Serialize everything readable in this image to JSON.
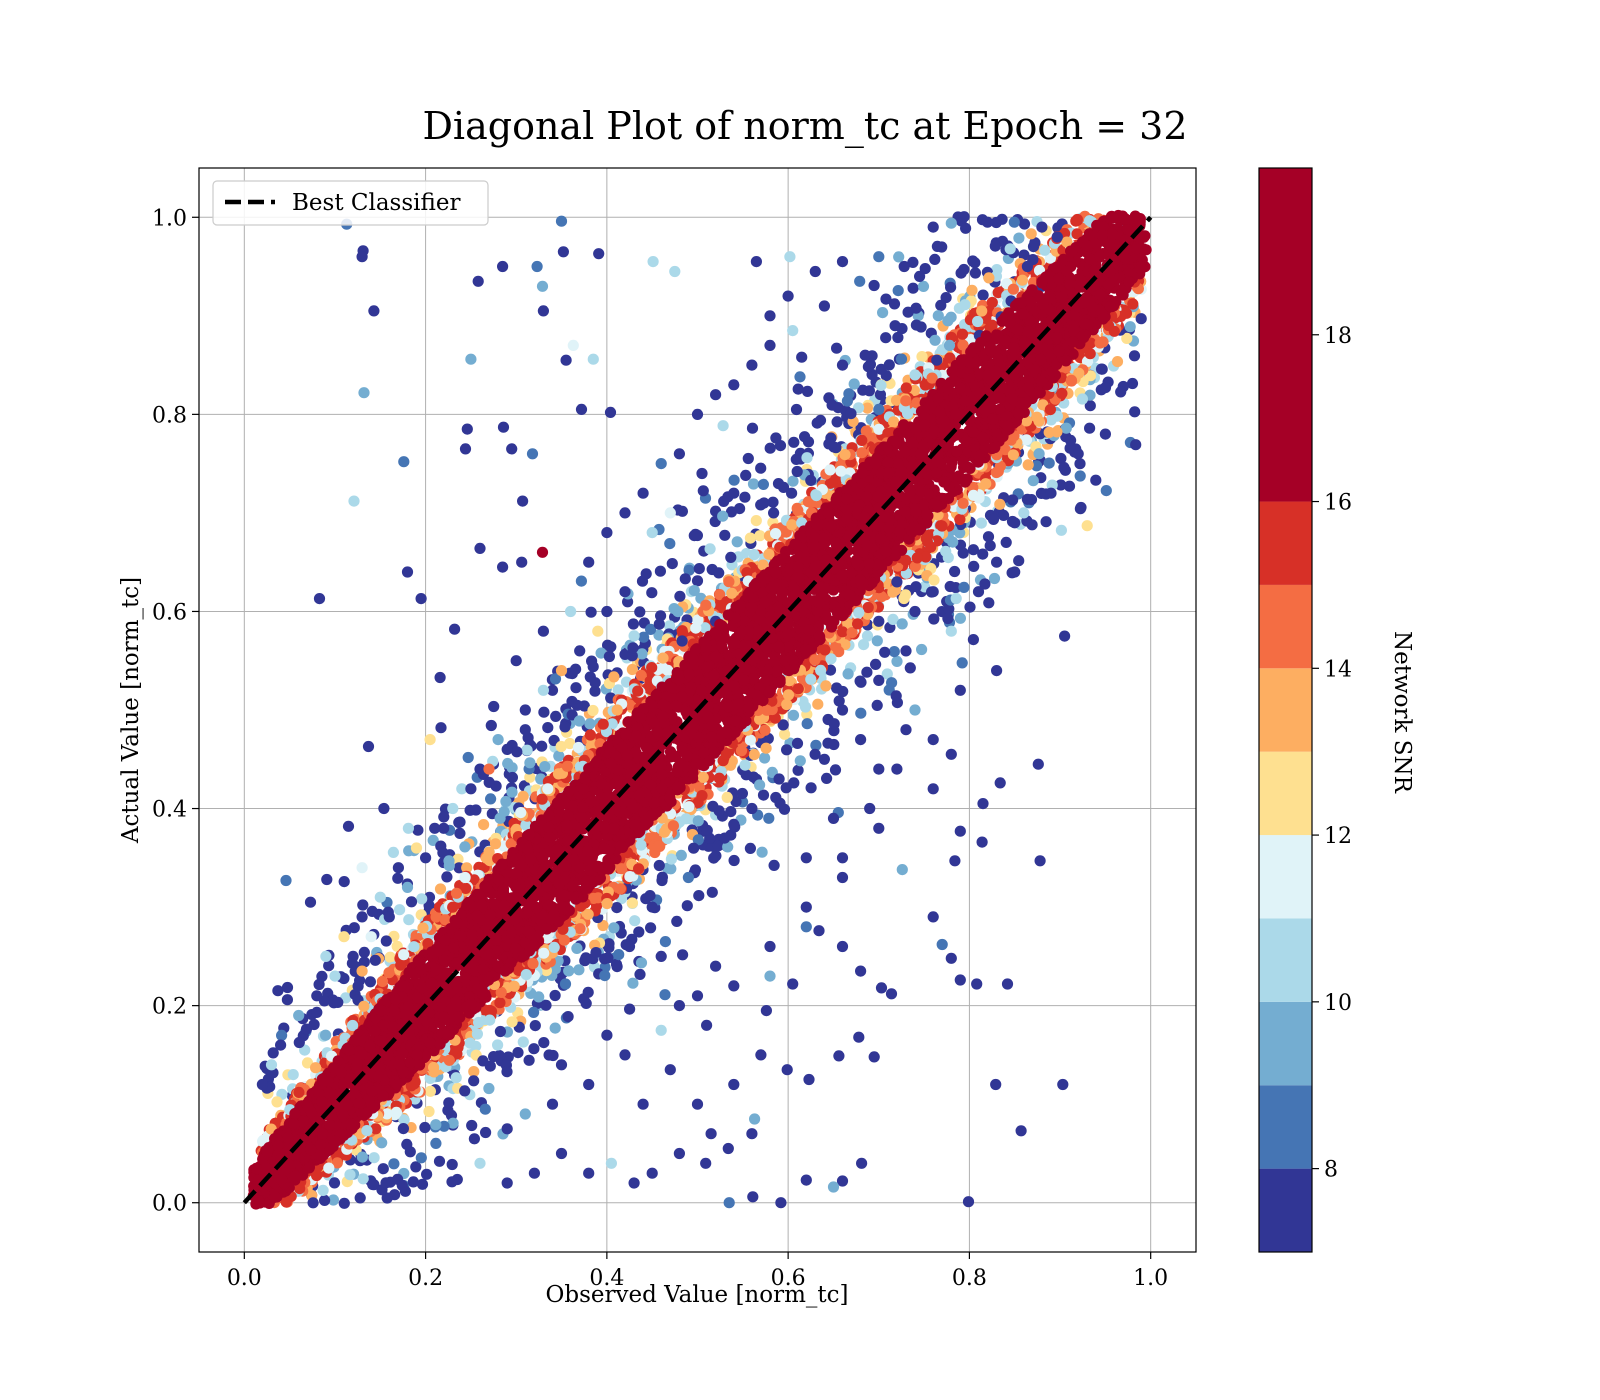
{
  "chart_data": {
    "type": "scatter",
    "title": "Diagonal Plot of norm_tc at Epoch = 32",
    "xlabel": "Observed Value [norm_tc]",
    "ylabel": "Actual Value [norm_tc]",
    "xlim": [
      -0.05,
      1.05
    ],
    "ylim": [
      -0.05,
      1.05
    ],
    "x_ticks": [
      0.0,
      0.2,
      0.4,
      0.6,
      0.8,
      1.0
    ],
    "y_ticks": [
      0.0,
      0.2,
      0.4,
      0.6,
      0.8,
      1.0
    ],
    "x_tick_labels": [
      "0.0",
      "0.2",
      "0.4",
      "0.6",
      "0.8",
      "1.0"
    ],
    "y_tick_labels": [
      "0.0",
      "0.2",
      "0.4",
      "0.6",
      "0.8",
      "1.0"
    ],
    "grid": true,
    "reference_line": {
      "name": "Best Classifier",
      "style": "dashed",
      "color": "#000000",
      "points": [
        [
          0.0,
          0.0
        ],
        [
          1.0,
          1.0
        ]
      ]
    },
    "legend": {
      "placement": "top-left",
      "entries": [
        "Best Classifier"
      ]
    },
    "colorbar": {
      "label": "Network SNR",
      "range": [
        7,
        20
      ],
      "ticks": [
        8,
        10,
        12,
        14,
        16,
        18
      ],
      "tick_labels": [
        "8",
        "10",
        "12",
        "14",
        "16",
        "18"
      ],
      "bins": [
        {
          "from": 7,
          "to": 8,
          "color": "#313695"
        },
        {
          "from": 8,
          "to": 9,
          "color": "#4575b4"
        },
        {
          "from": 9,
          "to": 10,
          "color": "#74add1"
        },
        {
          "from": 10,
          "to": 11,
          "color": "#abd9e9"
        },
        {
          "from": 11,
          "to": 12,
          "color": "#e0f3f8"
        },
        {
          "from": 12,
          "to": 13,
          "color": "#fee090"
        },
        {
          "from": 13,
          "to": 14,
          "color": "#fdae61"
        },
        {
          "from": 14,
          "to": 15,
          "color": "#f46d43"
        },
        {
          "from": 15,
          "to": 16,
          "color": "#d73027"
        },
        {
          "from": 16,
          "to": 20,
          "color": "#a50026"
        }
      ]
    },
    "point_color_by": "Network SNR",
    "band": {
      "description_values": "core points lie near y = x for SNR >= 16",
      "core_halfwidth_by_x": [
        [
          0.0,
          0.03
        ],
        [
          0.2,
          0.06
        ],
        [
          0.4,
          0.07
        ],
        [
          0.6,
          0.07
        ],
        [
          0.8,
          0.07
        ],
        [
          1.0,
          0.05
        ]
      ]
    },
    "points": [
      [
        0.113,
        0.993,
        8.0
      ],
      [
        0.131,
        0.966,
        7.6
      ],
      [
        0.13,
        0.96,
        7.4
      ],
      [
        0.143,
        0.905,
        7.5
      ],
      [
        0.132,
        0.822,
        9.0
      ],
      [
        0.176,
        0.752,
        8.6
      ],
      [
        0.121,
        0.712,
        10.5
      ],
      [
        0.083,
        0.613,
        7.8
      ],
      [
        0.18,
        0.64,
        7.6
      ],
      [
        0.195,
        0.613,
        7.9
      ],
      [
        0.35,
        0.996,
        8.2
      ],
      [
        0.352,
        0.965,
        7.5
      ],
      [
        0.391,
        0.963,
        7.6
      ],
      [
        0.451,
        0.955,
        10.5
      ],
      [
        0.475,
        0.945,
        10.8
      ],
      [
        0.258,
        0.935,
        7.8
      ],
      [
        0.285,
        0.95,
        7.3
      ],
      [
        0.323,
        0.95,
        8.5
      ],
      [
        0.329,
        0.93,
        9.2
      ],
      [
        0.33,
        0.905,
        7.7
      ],
      [
        0.25,
        0.856,
        9.0
      ],
      [
        0.355,
        0.855,
        7.4
      ],
      [
        0.385,
        0.856,
        10.4
      ],
      [
        0.363,
        0.87,
        11.0
      ],
      [
        0.246,
        0.785,
        7.7
      ],
      [
        0.286,
        0.787,
        7.6
      ],
      [
        0.295,
        0.765,
        7.5
      ],
      [
        0.318,
        0.76,
        8.3
      ],
      [
        0.244,
        0.765,
        7.4
      ],
      [
        0.307,
        0.712,
        7.5
      ],
      [
        0.372,
        0.805,
        7.6
      ],
      [
        0.404,
        0.802,
        7.7
      ],
      [
        0.26,
        0.664,
        7.8
      ],
      [
        0.329,
        0.66,
        16.0
      ],
      [
        0.306,
        0.65,
        7.5
      ],
      [
        0.285,
        0.645,
        7.4
      ],
      [
        0.232,
        0.582,
        7.6
      ],
      [
        0.216,
        0.533,
        7.7
      ],
      [
        0.217,
        0.482,
        7.9
      ],
      [
        0.205,
        0.47,
        12.5
      ],
      [
        0.137,
        0.463,
        7.5
      ],
      [
        0.154,
        0.4,
        7.6
      ],
      [
        0.181,
        0.38,
        10.8
      ],
      [
        0.091,
        0.328,
        7.8
      ],
      [
        0.046,
        0.327,
        8.9
      ],
      [
        0.073,
        0.305,
        7.4
      ],
      [
        0.115,
        0.382,
        7.7
      ],
      [
        0.13,
        0.34,
        11.5
      ],
      [
        0.565,
        0.955,
        7.5
      ],
      [
        0.602,
        0.96,
        10.6
      ],
      [
        0.63,
        0.945,
        7.6
      ],
      [
        0.66,
        0.955,
        7.4
      ],
      [
        0.7,
        0.96,
        8.1
      ],
      [
        0.728,
        0.95,
        7.5
      ],
      [
        0.745,
        0.94,
        7.7
      ],
      [
        0.679,
        0.935,
        8.6
      ],
      [
        0.708,
        0.917,
        7.6
      ],
      [
        0.718,
        0.89,
        7.4
      ],
      [
        0.64,
        0.91,
        7.6
      ],
      [
        0.58,
        0.87,
        7.6
      ],
      [
        0.605,
        0.885,
        10.4
      ],
      [
        0.615,
        0.858,
        7.5
      ],
      [
        0.66,
        0.85,
        7.9
      ],
      [
        0.685,
        0.86,
        7.8
      ],
      [
        0.74,
        0.84,
        10.3
      ],
      [
        0.76,
        0.815,
        7.5
      ],
      [
        0.7,
        0.805,
        8.5
      ],
      [
        0.645,
        0.77,
        7.6
      ],
      [
        0.61,
        0.742,
        7.7
      ],
      [
        0.625,
        0.733,
        7.4
      ],
      [
        0.505,
        0.74,
        7.5
      ],
      [
        0.54,
        0.72,
        7.6
      ],
      [
        0.584,
        0.7,
        7.7
      ],
      [
        0.615,
        0.69,
        10.2
      ],
      [
        0.567,
        0.595,
        7.8
      ],
      [
        0.52,
        0.59,
        7.4
      ],
      [
        0.483,
        0.57,
        7.5
      ],
      [
        0.76,
        0.99,
        7.7
      ],
      [
        0.78,
        0.994,
        9.0
      ],
      [
        0.82,
        0.995,
        7.4
      ],
      [
        0.845,
        0.968,
        10.3
      ],
      [
        0.87,
        0.957,
        7.6
      ],
      [
        0.864,
        0.95,
        7.5
      ],
      [
        0.897,
        0.98,
        7.5
      ],
      [
        0.905,
        0.94,
        8.8
      ],
      [
        0.88,
        0.93,
        7.8
      ],
      [
        0.846,
        0.915,
        7.7
      ],
      [
        0.835,
        0.899,
        7.4
      ],
      [
        0.811,
        0.88,
        7.6
      ],
      [
        0.778,
        0.87,
        9.5
      ],
      [
        0.764,
        0.855,
        7.4
      ],
      [
        0.85,
        0.87,
        16.3
      ],
      [
        0.88,
        0.99,
        7.5
      ],
      [
        0.935,
        0.995,
        10.8
      ],
      [
        0.975,
        0.99,
        7.5
      ],
      [
        0.903,
        0.12,
        7.5
      ],
      [
        0.857,
        0.073,
        7.6
      ],
      [
        0.829,
        0.12,
        7.7
      ],
      [
        0.842,
        0.222,
        7.5
      ],
      [
        0.808,
        0.222,
        7.4
      ],
      [
        0.79,
        0.226,
        7.6
      ],
      [
        0.799,
        0.001,
        7.7
      ],
      [
        0.876,
        0.445,
        7.5
      ],
      [
        0.878,
        0.347,
        7.6
      ],
      [
        0.834,
        0.426,
        7.7
      ],
      [
        0.814,
        0.366,
        7.4
      ],
      [
        0.815,
        0.405,
        7.6
      ],
      [
        0.784,
        0.347,
        7.5
      ],
      [
        0.79,
        0.377,
        7.7
      ],
      [
        0.726,
        0.338,
        9.4
      ],
      [
        0.76,
        0.29,
        7.5
      ],
      [
        0.77,
        0.262,
        8.7
      ],
      [
        0.78,
        0.248,
        7.4
      ],
      [
        0.703,
        0.218,
        7.6
      ],
      [
        0.714,
        0.212,
        7.8
      ],
      [
        0.68,
        0.235,
        7.7
      ],
      [
        0.66,
        0.26,
        7.4
      ],
      [
        0.62,
        0.28,
        8.2
      ],
      [
        0.62,
        0.35,
        7.5
      ],
      [
        0.66,
        0.33,
        7.7
      ],
      [
        0.634,
        0.276,
        7.6
      ],
      [
        0.605,
        0.222,
        7.4
      ],
      [
        0.58,
        0.23,
        9.4
      ],
      [
        0.576,
        0.195,
        7.7
      ],
      [
        0.57,
        0.15,
        7.5
      ],
      [
        0.599,
        0.135,
        7.8
      ],
      [
        0.623,
        0.125,
        7.6
      ],
      [
        0.656,
        0.149,
        7.4
      ],
      [
        0.678,
        0.168,
        7.6
      ],
      [
        0.695,
        0.148,
        7.7
      ],
      [
        0.681,
        0.04,
        7.5
      ],
      [
        0.66,
        0.022,
        7.7
      ],
      [
        0.65,
        0.016,
        9.5
      ],
      [
        0.62,
        0.023,
        7.6
      ],
      [
        0.592,
        0.0,
        7.4
      ],
      [
        0.561,
        0.006,
        7.6
      ],
      [
        0.535,
        0.0,
        8.7
      ],
      [
        0.56,
        0.07,
        7.5
      ],
      [
        0.515,
        0.07,
        7.7
      ],
      [
        0.5,
        0.1,
        7.4
      ],
      [
        0.54,
        0.12,
        7.8
      ],
      [
        0.563,
        0.085,
        9.0
      ],
      [
        0.534,
        0.055,
        7.6
      ],
      [
        0.509,
        0.04,
        7.5
      ],
      [
        0.48,
        0.05,
        7.7
      ],
      [
        0.45,
        0.03,
        7.4
      ],
      [
        0.43,
        0.02,
        7.6
      ],
      [
        0.405,
        0.04,
        10.0
      ],
      [
        0.38,
        0.03,
        7.5
      ],
      [
        0.35,
        0.05,
        7.6
      ],
      [
        0.32,
        0.03,
        7.5
      ],
      [
        0.29,
        0.02,
        7.7
      ],
      [
        0.26,
        0.04,
        10.3
      ],
      [
        0.44,
        0.1,
        7.5
      ],
      [
        0.47,
        0.135,
        7.6
      ],
      [
        0.42,
        0.15,
        7.7
      ],
      [
        0.4,
        0.17,
        7.4
      ],
      [
        0.38,
        0.12,
        7.6
      ],
      [
        0.34,
        0.1,
        7.8
      ],
      [
        0.31,
        0.09,
        9.0
      ],
      [
        0.29,
        0.075,
        7.5
      ],
      [
        0.35,
        0.14,
        7.7
      ],
      [
        0.46,
        0.175,
        10.4
      ],
      [
        0.5,
        0.21,
        7.5
      ],
      [
        0.52,
        0.24,
        7.6
      ],
      [
        0.48,
        0.2,
        7.4
      ],
      [
        0.46,
        0.25,
        7.5
      ],
      [
        0.425,
        0.26,
        7.7
      ],
      [
        0.45,
        0.3,
        7.6
      ],
      [
        0.49,
        0.33,
        8.4
      ],
      [
        0.53,
        0.37,
        7.5
      ],
      [
        0.56,
        0.4,
        7.6
      ],
      [
        0.59,
        0.43,
        7.7
      ],
      [
        0.64,
        0.45,
        7.4
      ],
      [
        0.66,
        0.5,
        7.5
      ],
      [
        0.7,
        0.53,
        7.7
      ],
      [
        0.73,
        0.56,
        7.6
      ],
      [
        0.74,
        0.6,
        7.5
      ],
      [
        0.72,
        0.63,
        7.4
      ],
      [
        0.76,
        0.62,
        7.6
      ],
      [
        0.7,
        0.59,
        7.8
      ],
      [
        0.68,
        0.47,
        7.5
      ],
      [
        0.65,
        0.39,
        7.7
      ],
      [
        0.7,
        0.44,
        7.6
      ],
      [
        0.74,
        0.5,
        9.5
      ],
      [
        0.78,
        0.58,
        10.8
      ],
      [
        0.81,
        0.62,
        7.6
      ],
      [
        0.83,
        0.65,
        7.5
      ],
      [
        0.85,
        0.69,
        7.7
      ],
      [
        0.86,
        0.7,
        10.8
      ],
      [
        0.89,
        0.72,
        7.4
      ],
      [
        0.92,
        0.76,
        7.6
      ],
      [
        0.95,
        0.78,
        7.5
      ],
      [
        0.93,
        0.687,
        12.4
      ],
      [
        0.905,
        0.575,
        7.5
      ],
      [
        0.85,
        0.64,
        7.7
      ],
      [
        0.83,
        0.54,
        7.6
      ],
      [
        0.79,
        0.52,
        7.4
      ],
      [
        0.76,
        0.47,
        7.5
      ],
      [
        0.72,
        0.44,
        7.6
      ],
      [
        0.69,
        0.4,
        7.7
      ],
      [
        0.73,
        0.48,
        7.5
      ],
      [
        0.76,
        0.42,
        7.4
      ],
      [
        0.78,
        0.455,
        7.6
      ],
      [
        0.7,
        0.38,
        7.5
      ],
      [
        0.66,
        0.35,
        7.7
      ],
      [
        0.62,
        0.3,
        7.6
      ],
      [
        0.58,
        0.26,
        7.5
      ],
      [
        0.54,
        0.22,
        7.4
      ],
      [
        0.51,
        0.18,
        7.6
      ],
      [
        0.3,
        0.55,
        7.5
      ],
      [
        0.33,
        0.58,
        7.7
      ],
      [
        0.36,
        0.6,
        10.4
      ],
      [
        0.34,
        0.52,
        7.6
      ],
      [
        0.31,
        0.5,
        7.4
      ],
      [
        0.28,
        0.47,
        9.0
      ],
      [
        0.26,
        0.44,
        7.6
      ],
      [
        0.24,
        0.42,
        10.8
      ],
      [
        0.22,
        0.38,
        7.5
      ],
      [
        0.2,
        0.35,
        7.7
      ],
      [
        0.18,
        0.32,
        9.4
      ],
      [
        0.16,
        0.29,
        7.6
      ],
      [
        0.14,
        0.27,
        11.0
      ],
      [
        0.12,
        0.25,
        7.4
      ],
      [
        0.1,
        0.23,
        10.0
      ],
      [
        0.08,
        0.21,
        7.5
      ],
      [
        0.06,
        0.19,
        9.2
      ],
      [
        0.04,
        0.16,
        7.6
      ],
      [
        0.03,
        0.14,
        10.5
      ],
      [
        0.02,
        0.12,
        7.7
      ],
      [
        0.38,
        0.65,
        7.6
      ],
      [
        0.4,
        0.68,
        7.5
      ],
      [
        0.42,
        0.7,
        7.4
      ],
      [
        0.44,
        0.72,
        7.6
      ],
      [
        0.46,
        0.75,
        8.2
      ],
      [
        0.48,
        0.76,
        7.7
      ],
      [
        0.5,
        0.8,
        7.5
      ],
      [
        0.52,
        0.82,
        7.6
      ],
      [
        0.54,
        0.83,
        7.4
      ],
      [
        0.56,
        0.85,
        7.5
      ],
      [
        0.58,
        0.9,
        7.6
      ],
      [
        0.6,
        0.92,
        7.7
      ],
      [
        0.45,
        0.68,
        10.5
      ],
      [
        0.47,
        0.7,
        11.3
      ],
      [
        0.42,
        0.62,
        7.5
      ],
      [
        0.4,
        0.6,
        7.6
      ],
      [
        0.39,
        0.58,
        12.4
      ],
      [
        0.37,
        0.56,
        7.7
      ],
      [
        0.35,
        0.54,
        13.5
      ],
      [
        0.33,
        0.52,
        10.4
      ],
      [
        0.31,
        0.48,
        7.5
      ],
      [
        0.29,
        0.46,
        7.6
      ],
      [
        0.27,
        0.44,
        14.0
      ],
      [
        0.25,
        0.42,
        7.4
      ],
      [
        0.23,
        0.4,
        10.6
      ],
      [
        0.21,
        0.38,
        7.7
      ],
      [
        0.19,
        0.36,
        12.2
      ],
      [
        0.17,
        0.34,
        7.6
      ],
      [
        0.15,
        0.31,
        10.4
      ],
      [
        0.13,
        0.29,
        7.5
      ],
      [
        0.11,
        0.27,
        12.5
      ],
      [
        0.09,
        0.25,
        10.2
      ]
    ]
  }
}
